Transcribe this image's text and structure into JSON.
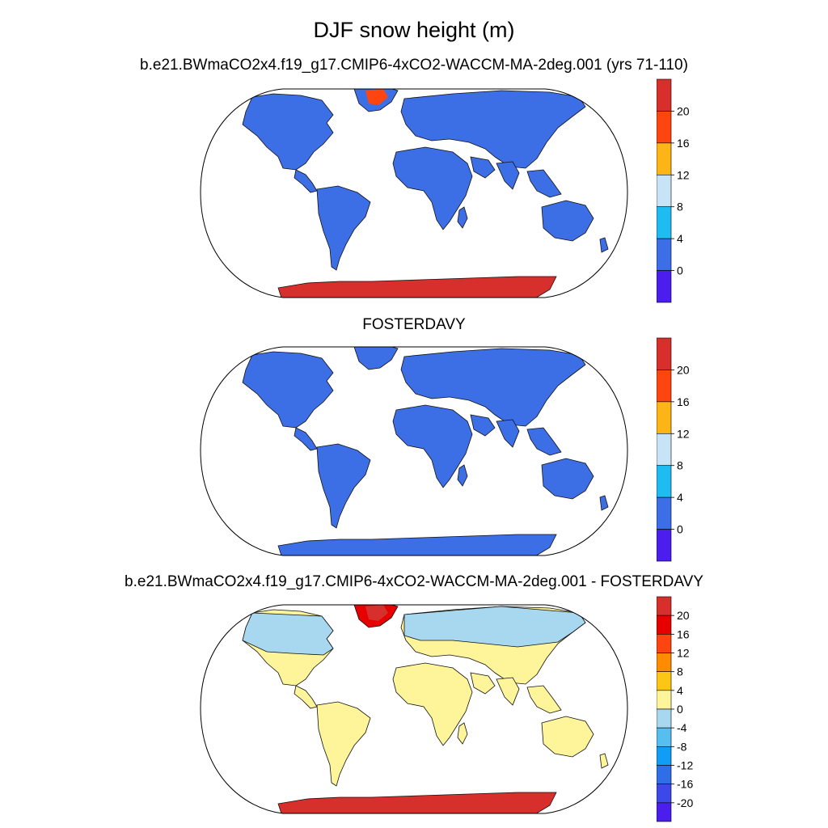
{
  "title": "DJF snow height (m)",
  "panels": [
    {
      "title": "b.e21.BWmaCO2x4.f19_g17.CMIP6-4xCO2-WACCM-MA-2deg.001 (yrs 71-110)",
      "colorbar": {
        "labels": [
          "20",
          "16",
          "12",
          "8",
          "4",
          "0"
        ],
        "colors": [
          "#d7302c",
          "#fe4510",
          "#fdb515",
          "#c7e4f7",
          "#1fbcf2",
          "#3c6ee6",
          "#4b1eee"
        ]
      }
    },
    {
      "title": "FOSTERDAVY",
      "colorbar": {
        "labels": [
          "20",
          "16",
          "12",
          "8",
          "4",
          "0"
        ],
        "colors": [
          "#d7302c",
          "#fe4510",
          "#fdb515",
          "#c7e4f7",
          "#1fbcf2",
          "#3c6ee6",
          "#4b1eee"
        ]
      }
    },
    {
      "title": "b.e21.BWmaCO2x4.f19_g17.CMIP6-4xCO2-WACCM-MA-2deg.001 - FOSTERDAVY",
      "colorbar": {
        "labels": [
          "20",
          "16",
          "12",
          "8",
          "4",
          "0",
          "-4",
          "-8",
          "-12",
          "-16",
          "-20"
        ],
        "colors": [
          "#d7302c",
          "#e60000",
          "#fe4510",
          "#ff8c00",
          "#fdc615",
          "#fef59a",
          "#a8d8f0",
          "#57bff0",
          "#0f9df5",
          "#2f6ee6",
          "#3c49e8",
          "#4b1eee"
        ]
      }
    }
  ],
  "colors": {
    "land_zero": "#3c6ee6",
    "land_small_positive": "#fef59a",
    "land_small_negative": "#a8d8f0",
    "antarctica_high": "#d7302c",
    "greenland_high": "#e60000"
  }
}
